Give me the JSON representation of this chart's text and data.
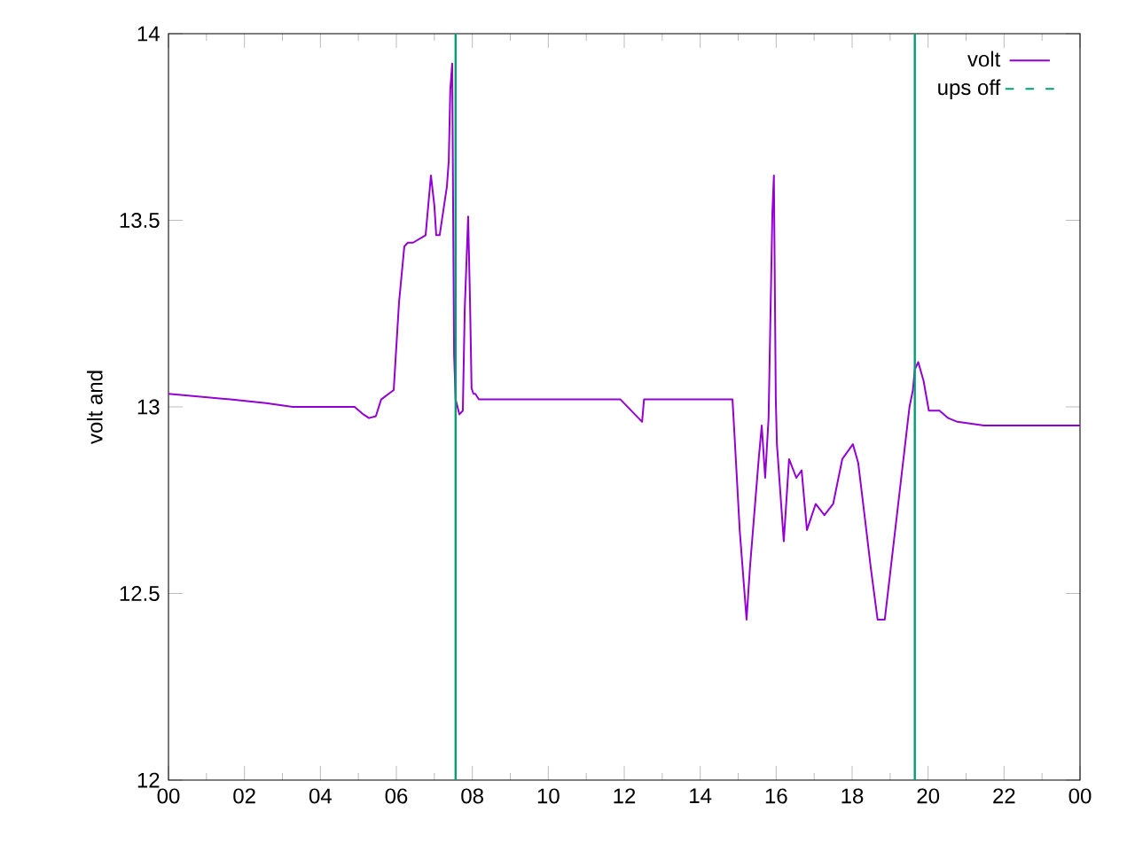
{
  "chart_data": {
    "type": "line",
    "ylabel": "volt and",
    "x": [
      0,
      1.63,
      2.57,
      3.27,
      4.9,
      5.13,
      5.28,
      5.46,
      5.6,
      5.93,
      6.07,
      6.21,
      6.3,
      6.44,
      6.77,
      6.91,
      7.0,
      7.05,
      7.14,
      7.33,
      7.38,
      7.42,
      7.47,
      7.52,
      7.56,
      7.66,
      7.75,
      7.8,
      7.89,
      7.94,
      7.98,
      8.03,
      8.08,
      8.17,
      9.1,
      9.57,
      11.9,
      12.47,
      12.52,
      12.57,
      14.2,
      14.85,
      14.9,
      15.04,
      15.22,
      15.31,
      15.54,
      15.62,
      15.71,
      15.8,
      15.9,
      15.94,
      15.99,
      16.02,
      16.2,
      16.34,
      16.53,
      16.67,
      16.81,
      17.04,
      17.27,
      17.5,
      17.74,
      18.02,
      18.16,
      18.35,
      18.49,
      18.67,
      18.86,
      19.51,
      19.6,
      19.65,
      19.74,
      19.88,
      20.02,
      20.3,
      20.53,
      20.77,
      21.47,
      21.7,
      22.64,
      23.57,
      24
    ],
    "series": [
      {
        "name": "volt",
        "color": "#9400d3",
        "values": [
          13.035,
          13.02,
          13.01,
          13.0,
          13.0,
          12.98,
          12.97,
          12.975,
          13.02,
          13.045,
          13.28,
          13.43,
          13.44,
          13.44,
          13.46,
          13.62,
          13.54,
          13.46,
          13.46,
          13.59,
          13.66,
          13.85,
          13.92,
          13.14,
          13.02,
          12.98,
          12.99,
          13.26,
          13.51,
          13.28,
          13.05,
          13.035,
          13.035,
          13.02,
          13.02,
          13.02,
          13.02,
          12.96,
          13.02,
          13.02,
          13.02,
          13.02,
          12.93,
          12.67,
          12.43,
          12.57,
          12.86,
          12.95,
          12.81,
          12.97,
          13.52,
          13.62,
          13.02,
          12.9,
          12.64,
          12.86,
          12.81,
          12.83,
          12.67,
          12.74,
          12.71,
          12.74,
          12.86,
          12.9,
          12.85,
          12.69,
          12.57,
          12.43,
          12.43,
          13.0,
          13.045,
          13.1,
          13.12,
          13.07,
          12.99,
          12.99,
          12.97,
          12.96,
          12.95,
          12.95,
          12.95,
          12.95,
          12.95
        ]
      },
      {
        "name": "ups off",
        "type": "bar",
        "color": "#009e73",
        "x": [
          7.56,
          19.65
        ],
        "values": [
          14,
          14
        ]
      }
    ],
    "xlim": [
      0,
      24
    ],
    "ylim": [
      12,
      14
    ],
    "xticks": [
      {
        "value": 0,
        "label": "00"
      },
      {
        "value": 2,
        "label": "02"
      },
      {
        "value": 4,
        "label": "04"
      },
      {
        "value": 6,
        "label": "06"
      },
      {
        "value": 8,
        "label": "08"
      },
      {
        "value": 10,
        "label": "10"
      },
      {
        "value": 12,
        "label": "12"
      },
      {
        "value": 14,
        "label": "14"
      },
      {
        "value": 16,
        "label": "16"
      },
      {
        "value": 18,
        "label": "18"
      },
      {
        "value": 20,
        "label": "20"
      },
      {
        "value": 22,
        "label": "22"
      },
      {
        "value": 24,
        "label": "00"
      }
    ],
    "yticks": [
      12,
      12.5,
      13,
      13.5,
      14
    ],
    "grid": false,
    "legend": "top right",
    "marker": "none",
    "line_style": "solid"
  }
}
